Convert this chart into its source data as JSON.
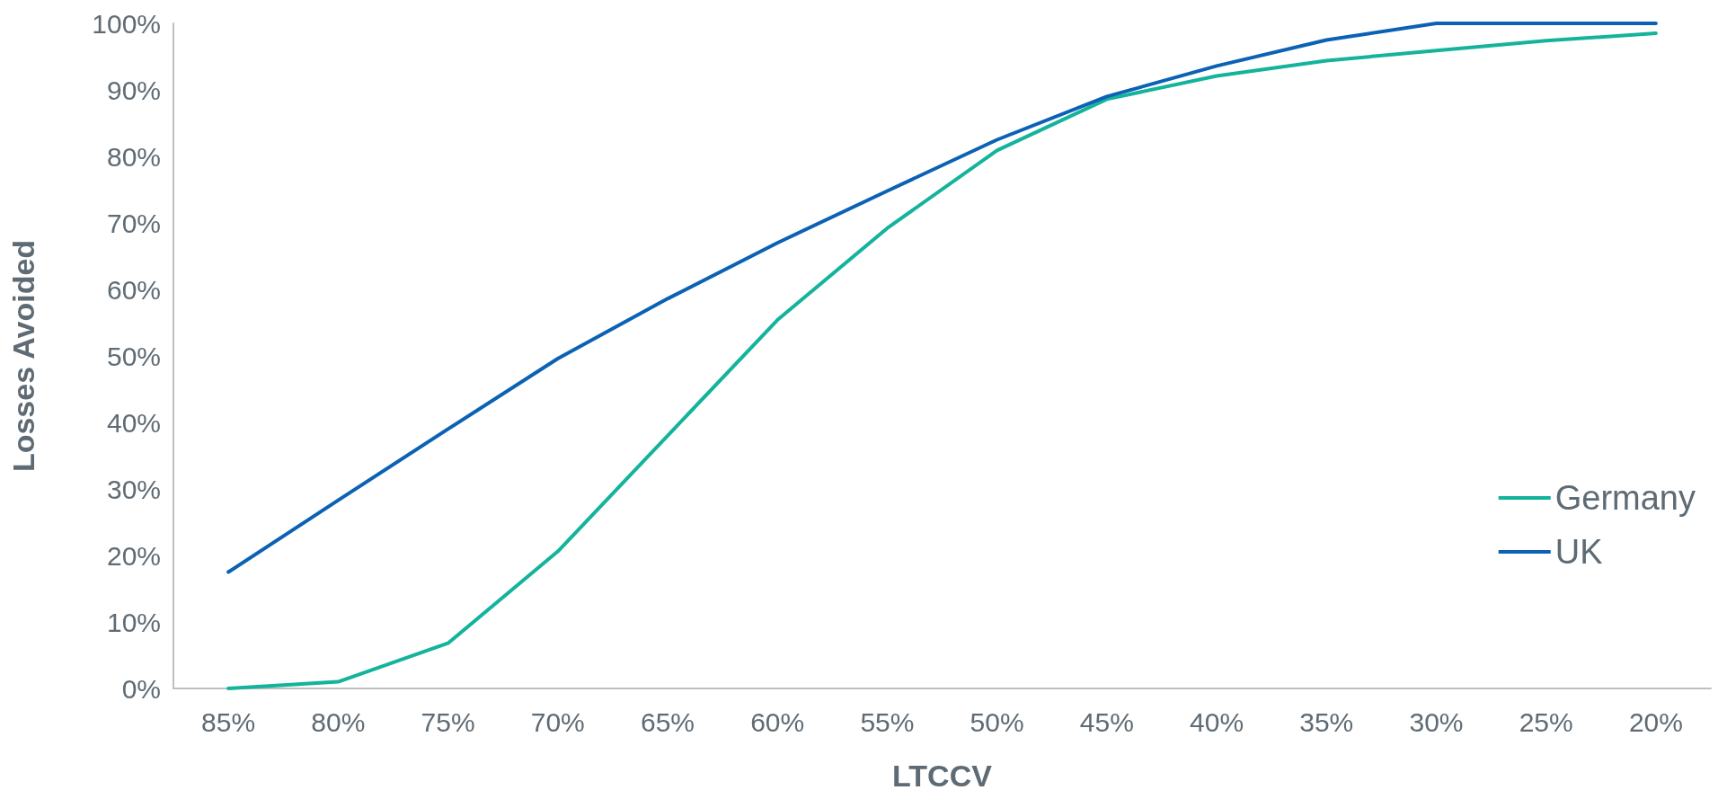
{
  "chart_data": {
    "type": "line",
    "xlabel": "LTCCV",
    "ylabel": "Losses Avoided",
    "categories": [
      "85%",
      "80%",
      "75%",
      "70%",
      "65%",
      "60%",
      "55%",
      "50%",
      "45%",
      "40%",
      "35%",
      "30%",
      "25%",
      "20%"
    ],
    "series": [
      {
        "name": "Germany",
        "color": "#14b39b",
        "values": [
          0,
          1,
          6.8,
          20.6,
          38,
          55.4,
          69.2,
          80.9,
          88.6,
          92.1,
          94.4,
          95.9,
          97.4,
          98.5
        ]
      },
      {
        "name": "UK",
        "color": "#0b62b5",
        "values": [
          17.5,
          28.3,
          39,
          49.6,
          58.6,
          67,
          74.8,
          82.5,
          89,
          93.6,
          97.5,
          100,
          100,
          100
        ]
      }
    ],
    "ylim": [
      0,
      100
    ],
    "yticks": [
      {
        "value": 0,
        "label": "0%"
      },
      {
        "value": 10,
        "label": "10%"
      },
      {
        "value": 20,
        "label": "20%"
      },
      {
        "value": 30,
        "label": "30%"
      },
      {
        "value": 40,
        "label": "40%"
      },
      {
        "value": 50,
        "label": "50%"
      },
      {
        "value": 60,
        "label": "60%"
      },
      {
        "value": 70,
        "label": "70%"
      },
      {
        "value": 80,
        "label": "80%"
      },
      {
        "value": 90,
        "label": "90%"
      },
      {
        "value": 100,
        "label": "100%"
      }
    ],
    "grid": false,
    "legend": "right",
    "marker": "none",
    "line_style": "solid"
  }
}
